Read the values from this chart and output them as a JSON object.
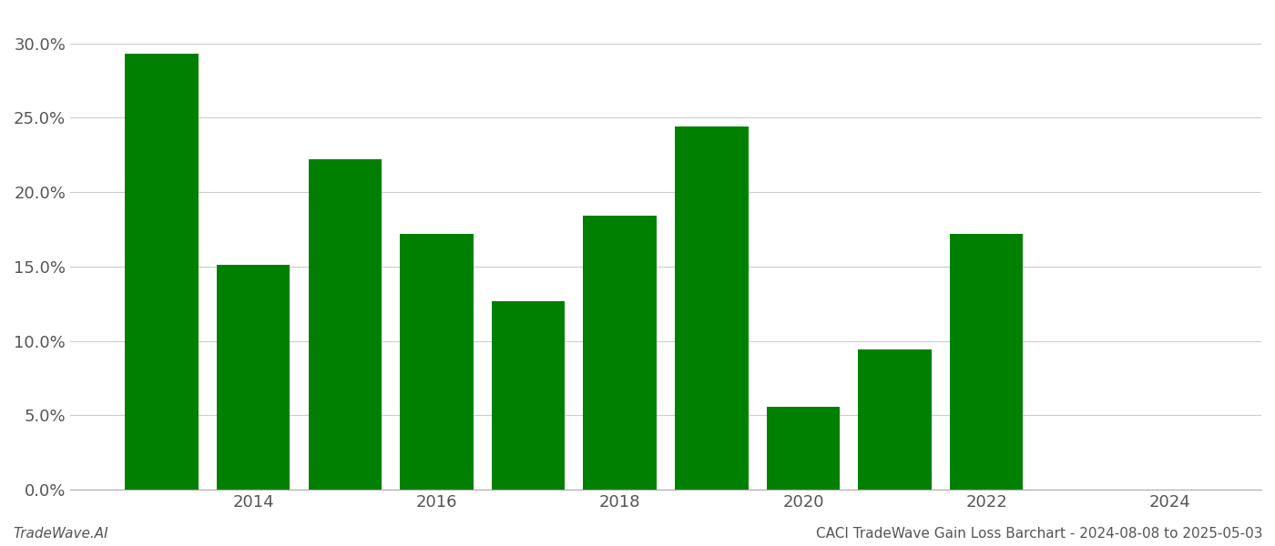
{
  "years": [
    2013,
    2014,
    2015,
    2016,
    2017,
    2018,
    2019,
    2020,
    2021,
    2022,
    2023
  ],
  "values": [
    0.293,
    0.151,
    0.222,
    0.172,
    0.127,
    0.184,
    0.244,
    0.056,
    0.094,
    0.172,
    0.0
  ],
  "bar_color": "#008000",
  "background_color": "#ffffff",
  "ylim": [
    0,
    0.32
  ],
  "yticks": [
    0.0,
    0.05,
    0.1,
    0.15,
    0.2,
    0.25,
    0.3
  ],
  "xticks": [
    2014,
    2016,
    2018,
    2020,
    2022,
    2024
  ],
  "xlim": [
    2012.0,
    2025.0
  ],
  "tick_fontsize": 13,
  "footer_left": "TradeWave.AI",
  "footer_right": "CACI TradeWave Gain Loss Barchart - 2024-08-08 to 2025-05-03",
  "footer_fontsize": 11,
  "grid_color": "#cccccc",
  "spine_color": "#aaaaaa",
  "bar_width": 0.8
}
